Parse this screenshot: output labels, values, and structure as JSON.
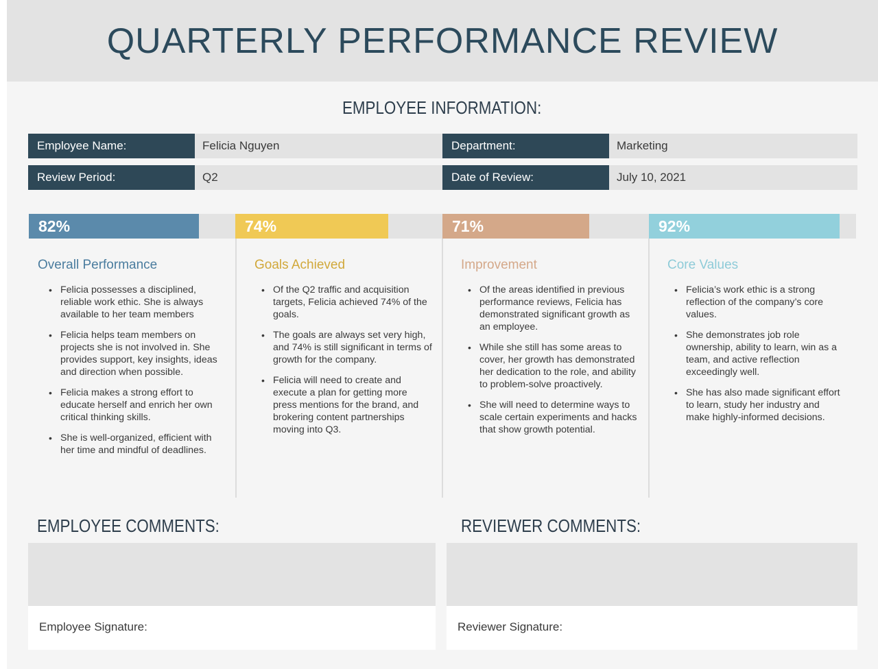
{
  "title": "QUARTERLY PERFORMANCE REVIEW",
  "employee_info": {
    "heading": "EMPLOYEE INFORMATION:",
    "fields": [
      {
        "label": "Employee Name:",
        "value": "Felicia Nguyen"
      },
      {
        "label": "Department:",
        "value": "Marketing"
      },
      {
        "label": "Review Period:",
        "value": "Q2"
      },
      {
        "label": "Date of Review:",
        "value": "July 10, 2021"
      }
    ]
  },
  "metrics": [
    {
      "percent_label": "82%",
      "value": 0.82,
      "title": "Overall Performance",
      "color": "#5b8aab",
      "title_color": "#4a7c9e",
      "bullets": [
        "Felicia possesses a disciplined, reliable work ethic. She is always available to her team members",
        "Felicia helps team members on projects she is not involved in. She provides support, key insights, ideas and direction when possible.",
        "Felicia makes a strong effort to educate herself and enrich her own critical thinking skills.",
        "She is well-organized, efficient with her time and mindful of deadlines."
      ]
    },
    {
      "percent_label": "74%",
      "value": 0.74,
      "title": "Goals Achieved",
      "color": "#f0c955",
      "title_color": "#d1a83a",
      "bullets": [
        "Of the Q2 traffic and acquisition targets, Felicia achieved 74% of the goals.",
        "The goals are always set very high, and 74% is still significant in terms of growth for the company.",
        "Felicia will need to create and execute a plan for getting more press mentions for the brand, and brokering content partnerships moving into Q3."
      ]
    },
    {
      "percent_label": "71%",
      "value": 0.71,
      "title": "Improvement",
      "color": "#d4a889",
      "title_color": "#d4a889",
      "bullets": [
        "Of the areas identified in previous performance reviews, Felicia has demonstrated significant growth as an employee.",
        "While she still has some areas to cover, her growth has demonstrated her dedication to the role, and ability to problem-solve proactively.",
        "She will need to determine ways to scale certain experiments and hacks that show growth potential."
      ]
    },
    {
      "percent_label": "92%",
      "value": 0.92,
      "title": "Core Values",
      "color": "#92d0dc",
      "title_color": "#8ecbd8",
      "bullets": [
        "Felicia’s work ethic is a strong reflection of the company’s core values.",
        "She demonstrates job role ownership, ability to learn, win as a team, and active reflection exceedingly well.",
        "She has also made significant effort to learn, study her industry and make highly-informed decisions."
      ]
    }
  ],
  "comments": {
    "employee_heading": "EMPLOYEE COMMENTS:",
    "reviewer_heading": "REVIEWER COMMENTS:",
    "employee_signature_label": "Employee Signature:",
    "reviewer_signature_label": "Reviewer Signature:"
  }
}
